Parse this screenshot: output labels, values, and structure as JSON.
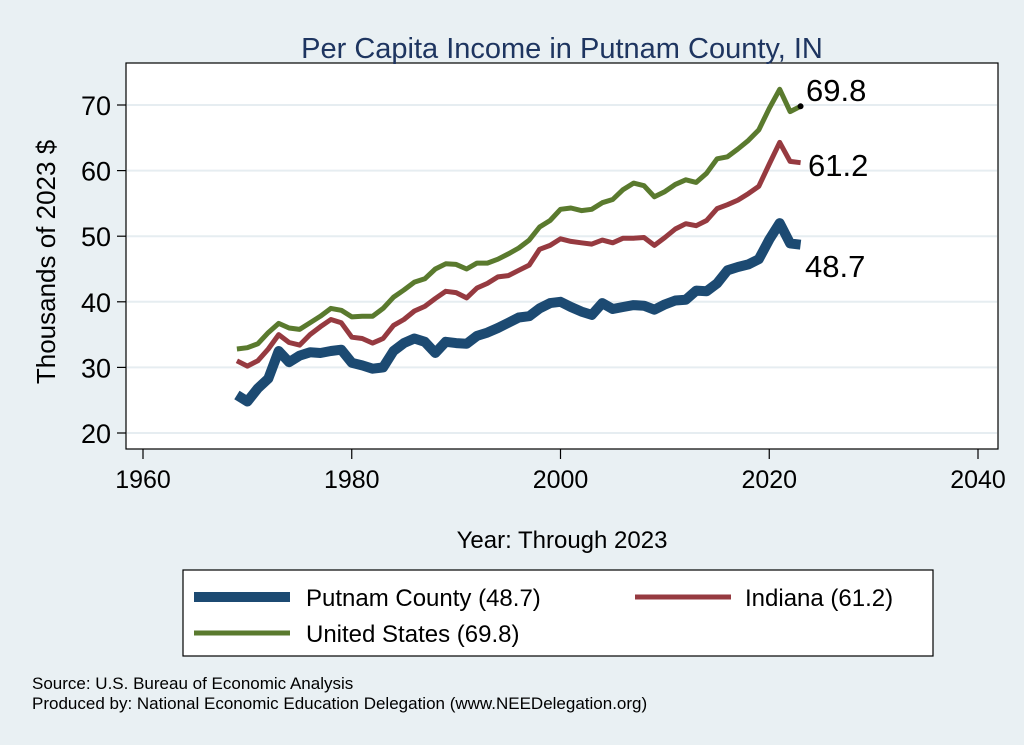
{
  "chart_data": {
    "type": "line",
    "title": "Per Capita Income in Putnam County, IN",
    "xlabel": "Year: Through 2023",
    "ylabel": "Thousands of 2023 $",
    "xlim": [
      1960,
      2040
    ],
    "ylim": [
      20,
      75
    ],
    "xticks": [
      1960,
      1980,
      2000,
      2020,
      2040
    ],
    "yticks": [
      20,
      30,
      40,
      50,
      60,
      70
    ],
    "grid": true,
    "legend_position": "bottom",
    "x_start": 1969,
    "series": [
      {
        "name": "Putnam County (48.7)",
        "color": "#1c4a72",
        "end_label": "48.7",
        "values": [
          25.8,
          24.8,
          26.8,
          28.3,
          32.5,
          30.8,
          31.8,
          32.3,
          32.2,
          32.5,
          32.7,
          30.7,
          30.3,
          29.8,
          30.0,
          32.5,
          33.7,
          34.4,
          33.9,
          32.2,
          33.9,
          33.7,
          33.6,
          34.8,
          35.3,
          36.0,
          36.8,
          37.6,
          37.8,
          39.0,
          39.8,
          40.0,
          39.2,
          38.5,
          38.0,
          39.8,
          38.9,
          39.2,
          39.5,
          39.4,
          38.8,
          39.6,
          40.2,
          40.3,
          41.7,
          41.6,
          42.8,
          44.8,
          45.3,
          45.7,
          46.5,
          49.5,
          52.0,
          48.9,
          48.7
        ]
      },
      {
        "name": "Indiana (61.2)",
        "color": "#963a40",
        "end_label": "61.2",
        "values": [
          31.0,
          30.2,
          31.0,
          32.8,
          35.0,
          33.8,
          33.4,
          35.0,
          36.2,
          37.3,
          36.8,
          34.6,
          34.4,
          33.7,
          34.4,
          36.4,
          37.3,
          38.6,
          39.3,
          40.5,
          41.6,
          41.4,
          40.6,
          42.1,
          42.8,
          43.8,
          44.0,
          44.8,
          45.6,
          48.0,
          48.6,
          49.6,
          49.2,
          49.0,
          48.8,
          49.4,
          49.0,
          49.7,
          49.7,
          49.8,
          48.6,
          49.8,
          51.1,
          51.9,
          51.6,
          52.4,
          54.2,
          54.8,
          55.5,
          56.5,
          57.6,
          61.0,
          64.3,
          61.4,
          61.2
        ]
      },
      {
        "name": "United States (69.8)",
        "color": "#5a7a2e",
        "end_label": "69.8",
        "values": [
          32.8,
          33.0,
          33.6,
          35.3,
          36.7,
          36.0,
          35.8,
          36.8,
          37.8,
          39.0,
          38.7,
          37.7,
          37.8,
          37.8,
          39.0,
          40.7,
          41.8,
          43.0,
          43.5,
          45.0,
          45.8,
          45.7,
          45.0,
          45.9,
          45.9,
          46.5,
          47.3,
          48.2,
          49.4,
          51.4,
          52.4,
          54.1,
          54.3,
          53.9,
          54.1,
          55.1,
          55.6,
          57.1,
          58.1,
          57.7,
          56.0,
          56.8,
          57.9,
          58.6,
          58.2,
          59.6,
          61.8,
          62.1,
          63.3,
          64.6,
          66.2,
          69.5,
          72.4,
          69.0,
          69.8
        ]
      }
    ],
    "notes": [
      "Source: U.S. Bureau of Economic Analysis",
      "Produced by: National Economic Education Delegation (www.NEEDelegation.org)"
    ]
  }
}
